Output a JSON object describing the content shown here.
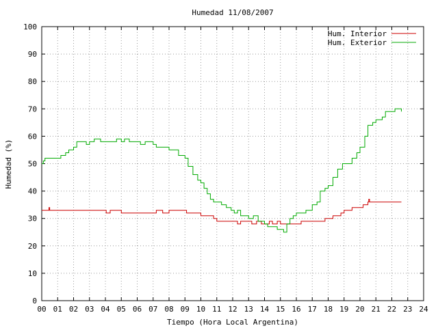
{
  "chart_data": {
    "type": "line",
    "title": "Humedad 11/08/2007",
    "xlabel": "Tiempo (Hora Local Argentina)",
    "ylabel": "Humedad (%)",
    "xlim": [
      0,
      24
    ],
    "ylim": [
      0,
      100
    ],
    "x_ticks": [
      "00",
      "01",
      "02",
      "03",
      "04",
      "05",
      "06",
      "07",
      "08",
      "09",
      "10",
      "11",
      "12",
      "13",
      "14",
      "15",
      "16",
      "17",
      "18",
      "19",
      "20",
      "21",
      "22",
      "23",
      "24"
    ],
    "y_ticks": [
      "0",
      "10",
      "20",
      "30",
      "40",
      "50",
      "60",
      "70",
      "80",
      "90",
      "100"
    ],
    "grid": true,
    "legend_position": "top-right",
    "series": [
      {
        "name": "Hum. Interior",
        "color": "#cc0000",
        "points": [
          [
            0,
            33
          ],
          [
            0.4,
            33
          ],
          [
            0.45,
            34
          ],
          [
            0.5,
            33
          ],
          [
            2,
            33
          ],
          [
            3,
            33
          ],
          [
            4,
            33
          ],
          [
            4.05,
            32
          ],
          [
            4.3,
            33
          ],
          [
            4.8,
            33
          ],
          [
            5,
            32
          ],
          [
            5.5,
            32
          ],
          [
            6,
            32
          ],
          [
            6.5,
            32
          ],
          [
            7,
            32
          ],
          [
            7.2,
            33
          ],
          [
            7.6,
            32
          ],
          [
            8,
            33
          ],
          [
            8.5,
            33
          ],
          [
            9,
            33
          ],
          [
            9.1,
            32
          ],
          [
            9.8,
            32
          ],
          [
            10,
            31
          ],
          [
            10.8,
            30
          ],
          [
            11,
            29
          ],
          [
            11.7,
            29
          ],
          [
            12,
            29
          ],
          [
            12.3,
            28
          ],
          [
            12.5,
            29
          ],
          [
            13,
            29
          ],
          [
            13.2,
            28
          ],
          [
            13.5,
            29
          ],
          [
            13.8,
            28
          ],
          [
            14,
            28
          ],
          [
            14.3,
            29
          ],
          [
            14.5,
            28
          ],
          [
            14.7,
            28
          ],
          [
            14.8,
            29
          ],
          [
            15,
            28
          ],
          [
            15.3,
            28
          ],
          [
            15.5,
            28
          ],
          [
            16,
            28
          ],
          [
            16.3,
            29
          ],
          [
            16.6,
            29
          ],
          [
            17,
            29
          ],
          [
            17.5,
            29
          ],
          [
            17.8,
            30
          ],
          [
            18,
            30
          ],
          [
            18.3,
            31
          ],
          [
            18.8,
            32
          ],
          [
            19,
            33
          ],
          [
            19.5,
            34
          ],
          [
            20,
            34
          ],
          [
            20.2,
            35
          ],
          [
            20.5,
            36
          ],
          [
            20.55,
            37
          ],
          [
            20.6,
            36
          ],
          [
            21,
            36
          ],
          [
            21.5,
            36
          ],
          [
            22,
            36
          ],
          [
            22.6,
            36
          ]
        ]
      },
      {
        "name": "Hum. Exterior",
        "color": "#00aa00",
        "points": [
          [
            0,
            50
          ],
          [
            0.1,
            51
          ],
          [
            0.2,
            52
          ],
          [
            1,
            52
          ],
          [
            1.2,
            53
          ],
          [
            1.5,
            54
          ],
          [
            1.7,
            55
          ],
          [
            2,
            56
          ],
          [
            2.2,
            58
          ],
          [
            2.5,
            58
          ],
          [
            2.8,
            57
          ],
          [
            3,
            58
          ],
          [
            3.3,
            59
          ],
          [
            3.7,
            58
          ],
          [
            4,
            58
          ],
          [
            4.5,
            58
          ],
          [
            4.7,
            59
          ],
          [
            5,
            58
          ],
          [
            5.2,
            59
          ],
          [
            5.5,
            58
          ],
          [
            6,
            58
          ],
          [
            6.2,
            57
          ],
          [
            6.5,
            58
          ],
          [
            7,
            57
          ],
          [
            7.2,
            56
          ],
          [
            7.5,
            56
          ],
          [
            8,
            55
          ],
          [
            8.3,
            55
          ],
          [
            8.6,
            53
          ],
          [
            9,
            52
          ],
          [
            9.2,
            49
          ],
          [
            9.5,
            46
          ],
          [
            9.8,
            44
          ],
          [
            10,
            43
          ],
          [
            10.2,
            41
          ],
          [
            10.4,
            39
          ],
          [
            10.6,
            37
          ],
          [
            10.8,
            36
          ],
          [
            11,
            36
          ],
          [
            11.3,
            35
          ],
          [
            11.6,
            34
          ],
          [
            11.9,
            33
          ],
          [
            12.1,
            32
          ],
          [
            12.3,
            33
          ],
          [
            12.5,
            31
          ],
          [
            12.8,
            31
          ],
          [
            13,
            30
          ],
          [
            13.3,
            31
          ],
          [
            13.6,
            29
          ],
          [
            13.9,
            29
          ],
          [
            14,
            28
          ],
          [
            14.2,
            27
          ],
          [
            14.5,
            27
          ],
          [
            14.8,
            26
          ],
          [
            15,
            26
          ],
          [
            15.2,
            25
          ],
          [
            15.4,
            28
          ],
          [
            15.6,
            30
          ],
          [
            15.8,
            31
          ],
          [
            16,
            32
          ],
          [
            16.3,
            32
          ],
          [
            16.6,
            33
          ],
          [
            17,
            35
          ],
          [
            17.3,
            36
          ],
          [
            17.5,
            40
          ],
          [
            17.8,
            41
          ],
          [
            18,
            42
          ],
          [
            18.3,
            45
          ],
          [
            18.6,
            48
          ],
          [
            18.9,
            50
          ],
          [
            19.2,
            50
          ],
          [
            19.5,
            52
          ],
          [
            19.8,
            54
          ],
          [
            20,
            56
          ],
          [
            20.3,
            60
          ],
          [
            20.5,
            64
          ],
          [
            20.8,
            65
          ],
          [
            21,
            66
          ],
          [
            21.2,
            66
          ],
          [
            21.4,
            67
          ],
          [
            21.6,
            69
          ],
          [
            22,
            69
          ],
          [
            22.2,
            70
          ],
          [
            22.6,
            69
          ]
        ]
      }
    ]
  }
}
